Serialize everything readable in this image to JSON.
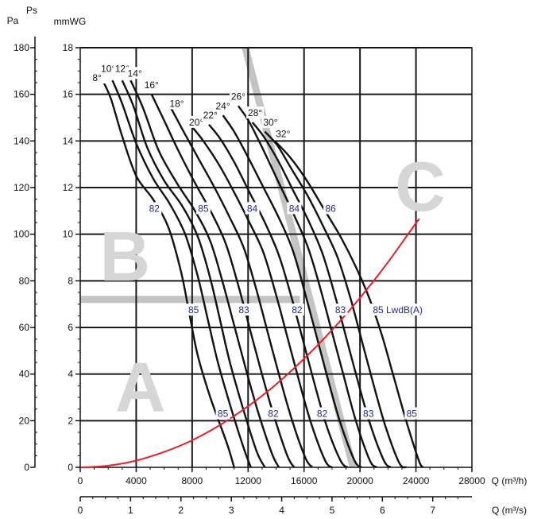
{
  "chart_data": {
    "type": "line",
    "title": "",
    "x_axis_primary": {
      "label": "Q (m³/h)",
      "range": [
        0,
        28000
      ],
      "ticks": [
        0,
        4000,
        8000,
        12000,
        16000,
        20000,
        24000,
        28000
      ]
    },
    "x_axis_secondary": {
      "label": "Q (m³/s)",
      "range": [
        0,
        7.78
      ],
      "ticks": [
        0,
        1,
        2,
        3,
        4,
        5,
        6,
        7
      ]
    },
    "y_axis_primary": {
      "label": "mmWG",
      "range": [
        0,
        18
      ],
      "ticks": [
        0,
        2,
        4,
        6,
        8,
        10,
        12,
        14,
        16,
        18
      ]
    },
    "y_axis_secondary": {
      "label_pa": "Pa",
      "label_ps": "Ps",
      "range": [
        0,
        180
      ],
      "ticks": [
        0,
        20,
        40,
        60,
        80,
        100,
        120,
        140,
        160,
        180
      ]
    },
    "grid": true,
    "zones": [
      {
        "letter": "A",
        "x": 4300,
        "y": 3.2
      },
      {
        "letter": "B",
        "x": 3200,
        "y": 8.8
      },
      {
        "letter": "C",
        "x": 24300,
        "y": 11.8
      }
    ],
    "zone_bands": [
      {
        "name": "zone-boundary-horizontal",
        "points": [
          [
            0,
            7.2
          ],
          [
            15700,
            7.2
          ]
        ]
      },
      {
        "name": "zone-boundary-diagonal",
        "points": [
          [
            11800,
            18
          ],
          [
            19500,
            0
          ]
        ]
      }
    ],
    "system_curve": {
      "name": "system-curve",
      "x": [
        0,
        2000,
        4000,
        6000,
        8000,
        10000,
        12000,
        14000,
        16000,
        18000,
        20000,
        22000,
        24000,
        24200
      ],
      "y": [
        0,
        0.07,
        0.29,
        0.66,
        1.16,
        1.82,
        2.62,
        3.56,
        4.66,
        5.89,
        7.27,
        8.8,
        10.48,
        10.6
      ]
    },
    "angle_series": [
      {
        "angle": "8°",
        "x": [
          1600,
          2200,
          3000,
          4000,
          5200,
          6300,
          7200,
          7800,
          8400,
          9300,
          10500,
          11000
        ],
        "y": [
          16.6,
          15.8,
          14.2,
          12.5,
          11.5,
          10.3,
          8.4,
          6.6,
          4.8,
          3.0,
          1.0,
          0
        ]
      },
      {
        "angle": "10°",
        "x": [
          2300,
          3000,
          4000,
          5200,
          6400,
          7500,
          8400,
          9100,
          9800,
          10700,
          11700,
          12200
        ],
        "y": [
          16.6,
          15.6,
          13.9,
          12.4,
          11.3,
          10.0,
          8.2,
          6.4,
          4.6,
          2.7,
          0.8,
          0
        ]
      },
      {
        "angle": "12°",
        "x": [
          3000,
          3800,
          4800,
          6000,
          7300,
          8400,
          9300,
          10000,
          10700,
          11600,
          12600,
          13200
        ],
        "y": [
          16.6,
          15.5,
          13.7,
          12.3,
          11.2,
          9.9,
          8.1,
          6.3,
          4.5,
          2.6,
          0.7,
          0
        ]
      },
      {
        "angle": "14°",
        "x": [
          3600,
          4500,
          5600,
          6900,
          8200,
          9300,
          10200,
          11000,
          11800,
          12700,
          13700,
          14200
        ],
        "y": [
          16.6,
          15.4,
          13.6,
          12.2,
          11.0,
          9.7,
          7.9,
          6.1,
          4.3,
          2.4,
          0.6,
          0
        ]
      },
      {
        "angle": "16°",
        "x": [
          5100,
          5900,
          7000,
          8200,
          9400,
          10400,
          11300,
          12100,
          12900,
          13800,
          14800,
          15300
        ],
        "y": [
          16.0,
          15.0,
          13.6,
          12.2,
          10.9,
          9.6,
          7.8,
          6.0,
          4.2,
          2.3,
          0.5,
          0
        ]
      },
      {
        "angle": "18°",
        "x": [
          6500,
          7300,
          8400,
          9600,
          10700,
          11700,
          12600,
          13400,
          14200,
          15100,
          16100,
          16600
        ],
        "y": [
          15.4,
          14.5,
          13.3,
          12.0,
          10.7,
          9.4,
          7.6,
          5.8,
          4.0,
          2.1,
          0.4,
          0
        ]
      },
      {
        "angle": "20°",
        "x": [
          8000,
          8800,
          9900,
          11000,
          12100,
          13100,
          14000,
          14800,
          15600,
          16500,
          17500,
          18000
        ],
        "y": [
          14.6,
          14.0,
          13.0,
          11.8,
          10.5,
          9.2,
          7.4,
          5.6,
          3.8,
          1.9,
          0.3,
          0
        ]
      },
      {
        "angle": "22°",
        "x": [
          9200,
          10000,
          11000,
          12100,
          13200,
          14200,
          15100,
          15900,
          16700,
          17600,
          18600,
          19100
        ],
        "y": [
          14.7,
          14.1,
          13.1,
          11.8,
          10.5,
          9.1,
          7.3,
          5.5,
          3.7,
          1.8,
          0.3,
          0
        ]
      },
      {
        "angle": "24°",
        "x": [
          10200,
          11000,
          12000,
          13100,
          14200,
          15200,
          16100,
          16900,
          17700,
          18600,
          19600,
          20100
        ],
        "y": [
          15.1,
          14.4,
          13.3,
          12.0,
          10.7,
          9.3,
          7.4,
          5.6,
          3.8,
          1.9,
          0.3,
          0
        ]
      },
      {
        "angle": "26°",
        "x": [
          11300,
          12100,
          13100,
          14200,
          15300,
          16300,
          17200,
          18000,
          18800,
          19700,
          20700,
          21200
        ],
        "y": [
          15.5,
          14.8,
          13.6,
          12.2,
          10.8,
          9.4,
          7.6,
          5.8,
          4.0,
          2.0,
          0.3,
          0
        ]
      },
      {
        "angle": "28°",
        "x": [
          12300,
          13100,
          14100,
          15200,
          16300,
          17300,
          18200,
          19000,
          19800,
          20700,
          21700,
          22200
        ],
        "y": [
          14.8,
          14.2,
          13.2,
          11.9,
          10.6,
          9.2,
          7.4,
          5.6,
          3.8,
          1.9,
          0.3,
          0
        ]
      },
      {
        "angle": "30°",
        "x": [
          13200,
          14100,
          15100,
          16300,
          17400,
          18400,
          19300,
          20100,
          20900,
          21800,
          22800,
          23300
        ],
        "y": [
          14.4,
          13.8,
          12.8,
          11.6,
          10.3,
          9.0,
          7.3,
          5.5,
          3.7,
          1.8,
          0.2,
          0
        ]
      },
      {
        "angle": "32°",
        "x": [
          13900,
          15000,
          16200,
          17400,
          18600,
          19700,
          20700,
          21600,
          22400,
          23300,
          24200,
          24500
        ],
        "y": [
          14.0,
          13.3,
          12.3,
          11.1,
          9.9,
          8.6,
          7.2,
          5.6,
          3.9,
          2.0,
          0.3,
          0
        ]
      }
    ],
    "angle_labels": [
      {
        "text": "8°",
        "x": 1200,
        "y": 16.7
      },
      {
        "text": "10°",
        "x": 2000,
        "y": 17.1
      },
      {
        "text": "12°",
        "x": 3000,
        "y": 17.1
      },
      {
        "text": "14°",
        "x": 3900,
        "y": 16.9
      },
      {
        "text": "16°",
        "x": 5100,
        "y": 16.4
      },
      {
        "text": "18°",
        "x": 6900,
        "y": 15.6
      },
      {
        "text": "20°",
        "x": 8300,
        "y": 14.8
      },
      {
        "text": "22°",
        "x": 9300,
        "y": 15.1
      },
      {
        "text": "24°",
        "x": 10200,
        "y": 15.5
      },
      {
        "text": "26°",
        "x": 11300,
        "y": 15.9
      },
      {
        "text": "28°",
        "x": 12500,
        "y": 15.2
      },
      {
        "text": "30°",
        "x": 13600,
        "y": 14.8
      },
      {
        "text": "32°",
        "x": 14500,
        "y": 14.3
      }
    ],
    "lw_labels": [
      {
        "text": "82",
        "x": 5300,
        "y": 11.1
      },
      {
        "text": "85",
        "x": 8800,
        "y": 11.1
      },
      {
        "text": "84",
        "x": 12300,
        "y": 11.1
      },
      {
        "text": "84",
        "x": 15300,
        "y": 11.1
      },
      {
        "text": "86",
        "x": 17900,
        "y": 11.1
      },
      {
        "text": "85",
        "x": 8100,
        "y": 6.75
      },
      {
        "text": "83",
        "x": 11700,
        "y": 6.75
      },
      {
        "text": "82",
        "x": 15500,
        "y": 6.75
      },
      {
        "text": "83",
        "x": 18600,
        "y": 6.75
      },
      {
        "text": "85 LwdB(A)",
        "x": 22700,
        "y": 6.75
      },
      {
        "text": "85",
        "x": 10200,
        "y": 2.3
      },
      {
        "text": "82",
        "x": 13800,
        "y": 2.3
      },
      {
        "text": "82",
        "x": 17300,
        "y": 2.3
      },
      {
        "text": "83",
        "x": 20600,
        "y": 2.3
      },
      {
        "text": "85",
        "x": 23700,
        "y": 2.3
      }
    ],
    "colors": {
      "curve": "#111111",
      "system_curve": "#e8202a",
      "zone_band": "#c4c4c4",
      "lw_label": "#1f2a8a",
      "grid": "#1a1a1a"
    }
  }
}
